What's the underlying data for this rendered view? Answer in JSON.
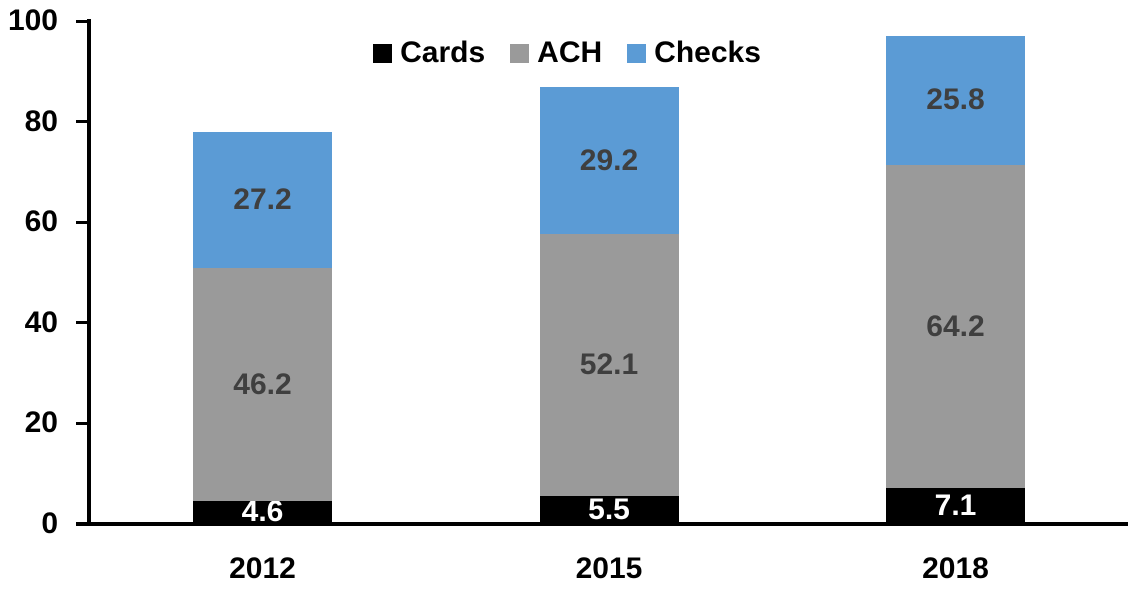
{
  "chart_data": {
    "type": "bar",
    "stacked": true,
    "categories": [
      "2012",
      "2015",
      "2018"
    ],
    "series": [
      {
        "name": "Cards",
        "color": "#000000",
        "label_color": "#FFFFFF",
        "values": [
          4.6,
          5.5,
          7.1
        ]
      },
      {
        "name": "ACH",
        "color": "#9A9A9A",
        "label_color": "#3F3F3F",
        "values": [
          46.2,
          52.1,
          64.2
        ]
      },
      {
        "name": "Checks",
        "color": "#5B9BD5",
        "label_color": "#3F3F3F",
        "values": [
          27.2,
          29.2,
          25.8
        ]
      }
    ],
    "totals": [
      78.0,
      86.8,
      97.1
    ],
    "title": "",
    "xlabel": "",
    "ylabel": "",
    "ylim": [
      0,
      100
    ],
    "y_ticks": [
      0,
      20,
      40,
      60,
      80,
      100
    ],
    "grid": false,
    "legend_position": "top-center",
    "axis_color": "#000000",
    "background_color": "#FFFFFF"
  }
}
